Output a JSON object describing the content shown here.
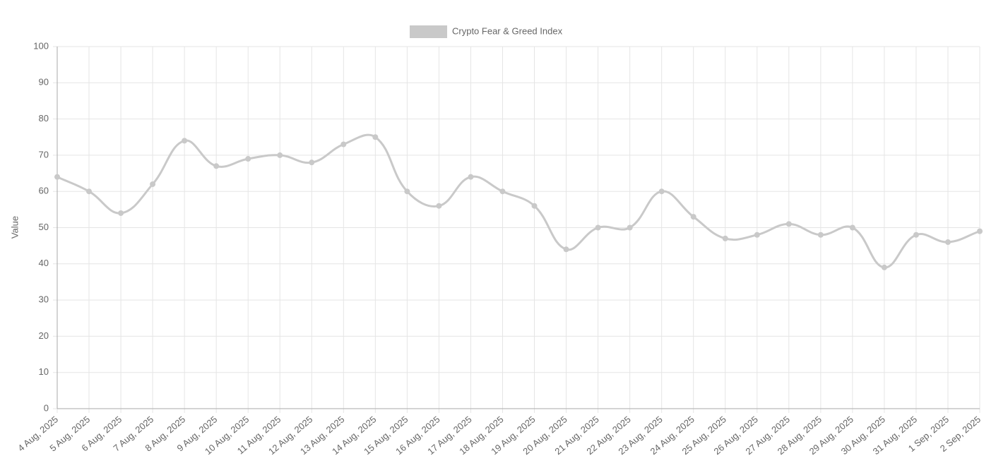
{
  "chart_data": {
    "type": "line",
    "ylabel": "Value",
    "categories": [
      "4 Aug, 2025",
      "5 Aug, 2025",
      "6 Aug, 2025",
      "7 Aug, 2025",
      "8 Aug, 2025",
      "9 Aug, 2025",
      "10 Aug, 2025",
      "11 Aug, 2025",
      "12 Aug, 2025",
      "13 Aug, 2025",
      "14 Aug, 2025",
      "15 Aug, 2025",
      "16 Aug, 2025",
      "17 Aug, 2025",
      "18 Aug, 2025",
      "19 Aug, 2025",
      "20 Aug, 2025",
      "21 Aug, 2025",
      "22 Aug, 2025",
      "23 Aug, 2025",
      "24 Aug, 2025",
      "25 Aug, 2025",
      "26 Aug, 2025",
      "27 Aug, 2025",
      "28 Aug, 2025",
      "29 Aug, 2025",
      "30 Aug, 2025",
      "31 Aug, 2025",
      "1 Sep, 2025",
      "2 Sep, 2025"
    ],
    "series": [
      {
        "name": "Crypto Fear & Greed Index",
        "color": "#c9c9c9",
        "values": [
          64,
          60,
          54,
          62,
          74,
          67,
          69,
          70,
          68,
          73,
          75,
          60,
          56,
          64,
          60,
          56,
          44,
          50,
          50,
          60,
          53,
          47,
          48,
          51,
          48,
          50,
          39,
          48,
          46,
          49
        ]
      }
    ],
    "ylim": [
      0,
      100
    ],
    "yticks": [
      0,
      10,
      20,
      30,
      40,
      50,
      60,
      70,
      80,
      90,
      100
    ],
    "grid": true,
    "legend": "top"
  }
}
